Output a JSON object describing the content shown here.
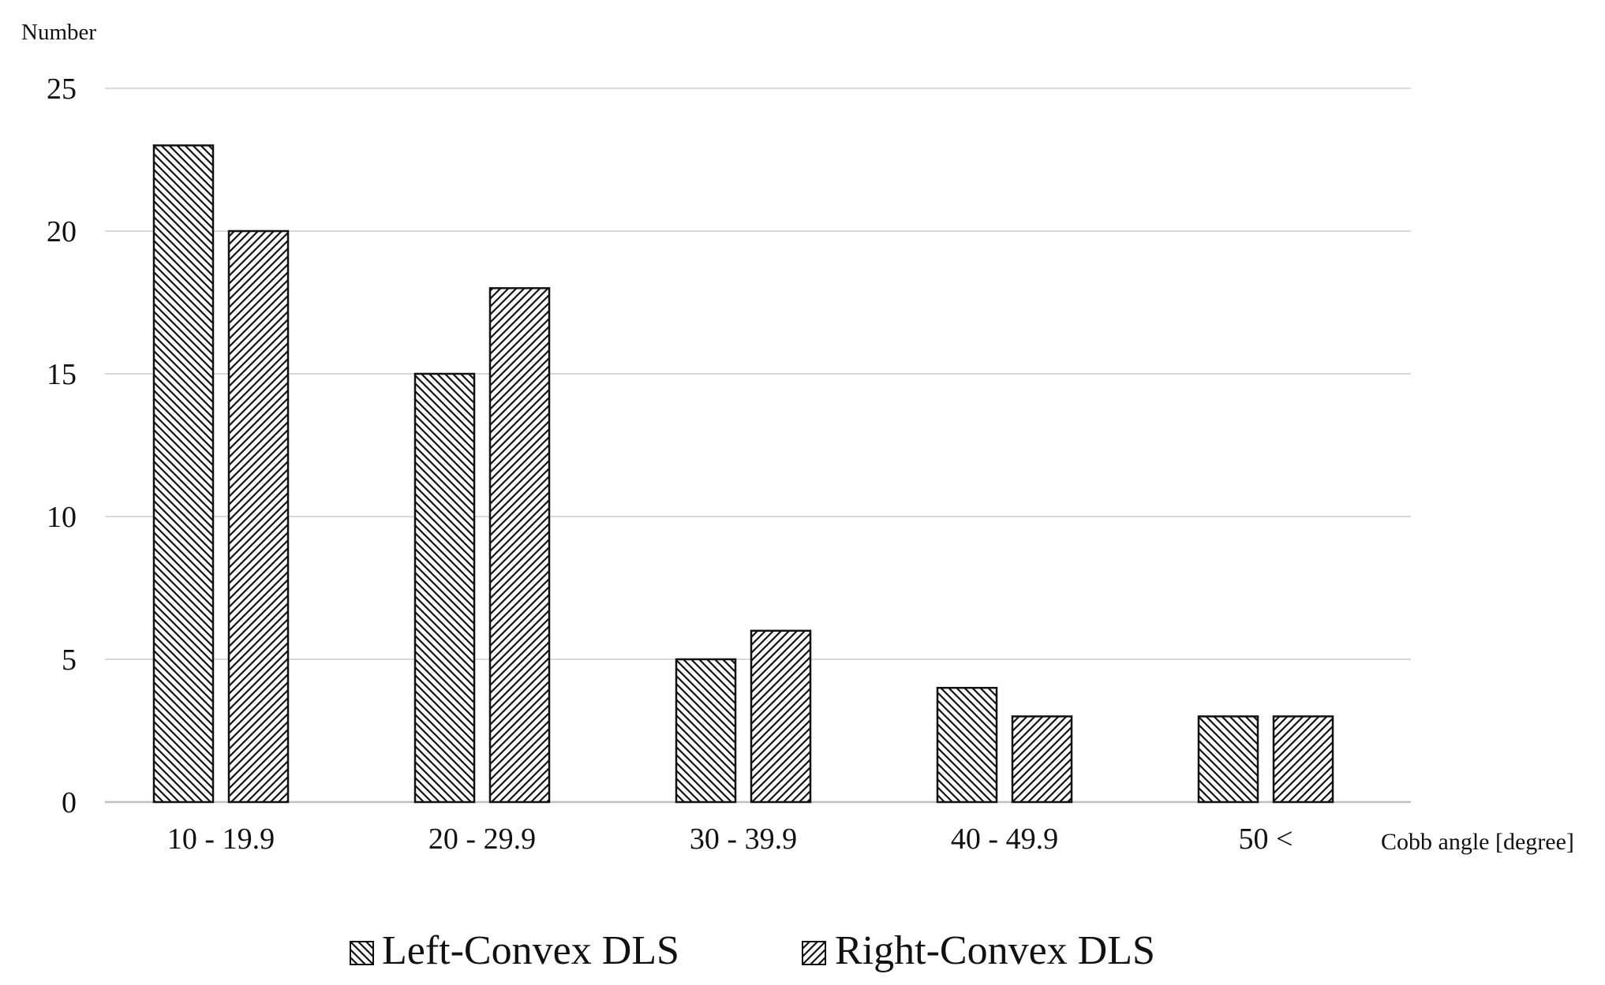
{
  "chart_data": {
    "type": "bar",
    "title": "",
    "ylabel": "Number",
    "xlabel": "Cobb angle [degree]",
    "ylim": [
      0,
      25
    ],
    "yticks": [
      0,
      5,
      10,
      15,
      20,
      25
    ],
    "grid": true,
    "legend_position": "bottom",
    "categories": [
      "10 - 19.9",
      "20 - 29.9",
      "30 - 39.9",
      "40 - 49.9",
      "50 <"
    ],
    "series": [
      {
        "name": "Left-Convex DLS",
        "pattern": "diagonal-back-slash",
        "values": [
          23,
          15,
          5,
          4,
          3
        ]
      },
      {
        "name": "Right-Convex DLS",
        "pattern": "diagonal-forward-slash",
        "values": [
          20,
          18,
          6,
          3,
          3
        ]
      }
    ],
    "colors": {
      "bar_fill": "#ffffff",
      "bar_stroke": "#111111",
      "hatch": "#111111",
      "grid": "#d9d9d9",
      "axis": "#bfbfbf"
    }
  }
}
